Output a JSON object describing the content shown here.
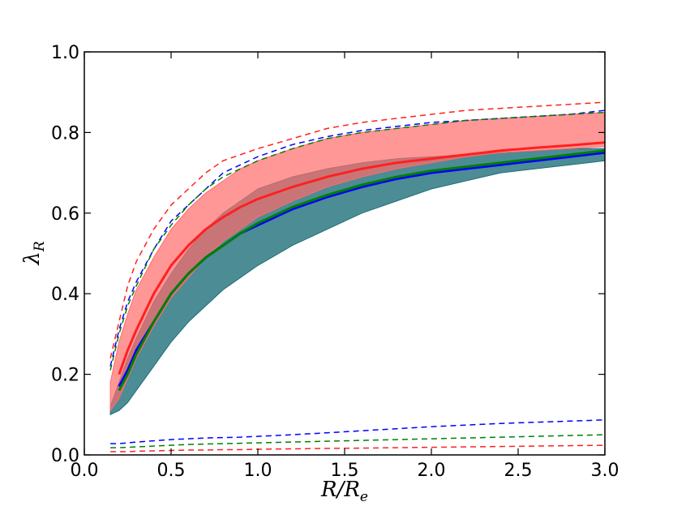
{
  "chart_data": {
    "type": "area",
    "title": "",
    "xlabel": "R/R",
    "xlabel_sub": "e",
    "ylabel": "λ",
    "ylabel_sub": "R",
    "xlim": [
      0.0,
      3.0
    ],
    "ylim": [
      0.0,
      1.0
    ],
    "xticks": [
      "0.0",
      "0.5",
      "1.0",
      "1.5",
      "2.0",
      "2.5",
      "3.0"
    ],
    "yticks": [
      "0.0",
      "0.2",
      "0.4",
      "0.6",
      "0.8",
      "1.0"
    ],
    "grid": false,
    "legend": "none",
    "x": [
      0.15,
      0.2,
      0.25,
      0.3,
      0.4,
      0.5,
      0.6,
      0.7,
      0.8,
      0.9,
      1.0,
      1.2,
      1.4,
      1.6,
      1.8,
      2.0,
      2.2,
      2.4,
      2.6,
      2.8,
      3.0
    ],
    "bands": [
      {
        "color": "#1f6f7a",
        "opacity": 0.8,
        "lower": [
          0.1,
          0.11,
          0.13,
          0.16,
          0.22,
          0.28,
          0.33,
          0.37,
          0.41,
          0.44,
          0.47,
          0.52,
          0.56,
          0.6,
          0.63,
          0.66,
          0.68,
          0.7,
          0.71,
          0.72,
          0.73
        ],
        "upper": [
          0.12,
          0.18,
          0.24,
          0.29,
          0.38,
          0.45,
          0.51,
          0.56,
          0.6,
          0.63,
          0.66,
          0.69,
          0.71,
          0.725,
          0.735,
          0.74,
          0.745,
          0.75,
          0.755,
          0.76,
          0.76
        ]
      },
      {
        "color": "#ff6b6b",
        "opacity": 0.7,
        "lower": [
          0.11,
          0.14,
          0.19,
          0.24,
          0.32,
          0.39,
          0.44,
          0.49,
          0.53,
          0.56,
          0.59,
          0.63,
          0.665,
          0.69,
          0.71,
          0.725,
          0.74,
          0.75,
          0.755,
          0.76,
          0.765
        ],
        "upper": [
          0.18,
          0.28,
          0.35,
          0.41,
          0.49,
          0.56,
          0.61,
          0.65,
          0.68,
          0.71,
          0.73,
          0.76,
          0.785,
          0.8,
          0.81,
          0.82,
          0.83,
          0.835,
          0.84,
          0.845,
          0.85
        ]
      }
    ],
    "series": [
      {
        "color": "#ff2020",
        "style": "solid",
        "values": [
          null,
          0.2,
          0.26,
          0.31,
          0.4,
          0.47,
          0.52,
          0.56,
          0.59,
          0.615,
          0.635,
          0.665,
          0.69,
          0.71,
          0.725,
          0.735,
          0.745,
          0.755,
          0.762,
          0.768,
          0.775
        ]
      },
      {
        "color": "#0000ff",
        "style": "solid",
        "values": [
          null,
          0.17,
          0.21,
          0.26,
          0.33,
          0.4,
          0.45,
          0.49,
          0.52,
          0.55,
          0.57,
          0.61,
          0.64,
          0.665,
          0.685,
          0.7,
          0.71,
          0.72,
          0.73,
          0.74,
          0.75
        ]
      },
      {
        "color": "#008000",
        "style": "solid",
        "values": [
          null,
          0.16,
          0.2,
          0.25,
          0.33,
          0.4,
          0.45,
          0.49,
          0.52,
          0.55,
          0.575,
          0.615,
          0.645,
          0.67,
          0.69,
          0.705,
          0.715,
          0.725,
          0.735,
          0.745,
          0.755
        ]
      },
      {
        "color": "#ff2020",
        "style": "dashed",
        "values": [
          0.24,
          0.33,
          0.42,
          0.48,
          0.56,
          0.62,
          0.66,
          0.7,
          0.73,
          0.745,
          0.76,
          0.785,
          0.81,
          0.825,
          0.835,
          0.845,
          0.855,
          0.86,
          0.865,
          0.87,
          0.875
        ]
      },
      {
        "color": "#0000ff",
        "style": "dashed",
        "values": [
          0.22,
          0.31,
          0.38,
          0.43,
          0.51,
          0.58,
          0.62,
          0.66,
          0.7,
          0.72,
          0.74,
          0.77,
          0.79,
          0.805,
          0.815,
          0.825,
          0.83,
          0.835,
          0.84,
          0.845,
          0.855
        ]
      },
      {
        "color": "#008000",
        "style": "dashed",
        "values": [
          0.21,
          0.3,
          0.37,
          0.42,
          0.51,
          0.57,
          0.62,
          0.66,
          0.69,
          0.71,
          0.73,
          0.76,
          0.785,
          0.8,
          0.81,
          0.82,
          0.83,
          0.835,
          0.84,
          0.845,
          0.85
        ]
      },
      {
        "color": "#0000ff",
        "style": "dashed",
        "values": [
          0.028,
          0.028,
          0.03,
          0.032,
          0.035,
          0.038,
          0.04,
          0.042,
          0.043,
          0.044,
          0.046,
          0.05,
          0.055,
          0.06,
          0.065,
          0.07,
          0.074,
          0.078,
          0.081,
          0.084,
          0.087
        ]
      },
      {
        "color": "#008000",
        "style": "dashed",
        "values": [
          0.018,
          0.018,
          0.019,
          0.02,
          0.022,
          0.024,
          0.026,
          0.027,
          0.028,
          0.029,
          0.03,
          0.032,
          0.034,
          0.036,
          0.038,
          0.04,
          0.042,
          0.044,
          0.046,
          0.048,
          0.05
        ]
      },
      {
        "color": "#ff2020",
        "style": "dashed",
        "values": [
          0.008,
          0.008,
          0.008,
          0.009,
          0.01,
          0.011,
          0.012,
          0.012,
          0.013,
          0.013,
          0.014,
          0.015,
          0.016,
          0.017,
          0.018,
          0.019,
          0.02,
          0.021,
          0.022,
          0.023,
          0.024
        ]
      }
    ]
  }
}
